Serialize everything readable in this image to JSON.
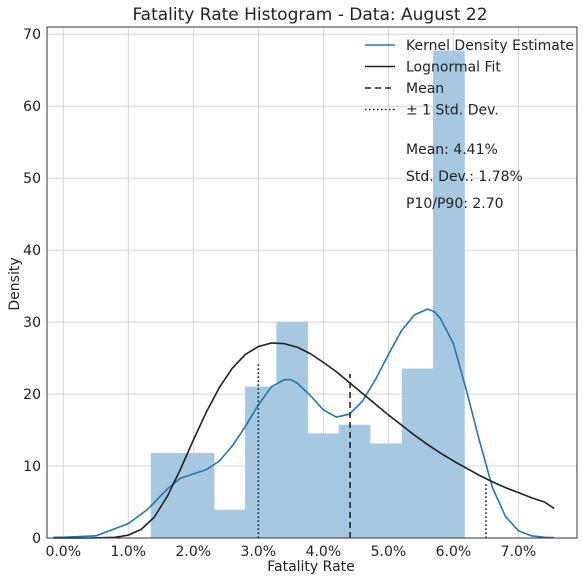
{
  "chart_data": {
    "type": "bar",
    "title": "Fatality Rate Histogram - Data: August 22",
    "xlabel": "Fatality Rate",
    "ylabel": "Density",
    "xlim": [
      -0.0025,
      0.079
    ],
    "ylim": [
      0,
      71
    ],
    "x_ticks": [
      0.0,
      0.01,
      0.02,
      0.03,
      0.04,
      0.05,
      0.06,
      0.07
    ],
    "x_tick_labels": [
      "0.0%",
      "1.0%",
      "2.0%",
      "3.0%",
      "4.0%",
      "5.0%",
      "6.0%",
      "7.0%"
    ],
    "y_ticks": [
      0,
      10,
      20,
      30,
      40,
      50,
      60,
      70
    ],
    "y_tick_labels": [
      "0",
      "10",
      "20",
      "30",
      "40",
      "50",
      "60",
      "70"
    ],
    "grid": true,
    "legend_position": "top-right",
    "histogram": {
      "color": "#a6c8e0",
      "bins": [
        {
          "x0": 0.0135,
          "x1": 0.0232,
          "density": 11.8
        },
        {
          "x0": 0.0232,
          "x1": 0.028,
          "density": 3.9
        },
        {
          "x0": 0.028,
          "x1": 0.0328,
          "density": 21.0
        },
        {
          "x0": 0.0328,
          "x1": 0.0376,
          "density": 30.0
        },
        {
          "x0": 0.0376,
          "x1": 0.0424,
          "density": 14.5
        },
        {
          "x0": 0.0424,
          "x1": 0.0472,
          "density": 15.7
        },
        {
          "x0": 0.0472,
          "x1": 0.0521,
          "density": 13.1
        },
        {
          "x0": 0.0521,
          "x1": 0.0569,
          "density": 23.5
        },
        {
          "x0": 0.0569,
          "x1": 0.0617,
          "density": 67.7
        }
      ]
    },
    "series": [
      {
        "name": "Kernel Density Estimate",
        "type": "line",
        "color": "#1f77b4",
        "style": "solid",
        "x": [
          -0.0015,
          0.0,
          0.005,
          0.01,
          0.013,
          0.016,
          0.018,
          0.02,
          0.022,
          0.024,
          0.026,
          0.028,
          0.03,
          0.032,
          0.034,
          0.035,
          0.036,
          0.038,
          0.04,
          0.042,
          0.044,
          0.046,
          0.048,
          0.05,
          0.052,
          0.054,
          0.056,
          0.057,
          0.058,
          0.06,
          0.062,
          0.064,
          0.066,
          0.068,
          0.07,
          0.072,
          0.074,
          0.0755
        ],
        "y": [
          0.1,
          0.1,
          0.3,
          2.0,
          4.0,
          6.8,
          8.3,
          8.9,
          9.5,
          10.7,
          12.8,
          15.5,
          18.5,
          21.0,
          22.0,
          22.0,
          21.5,
          19.8,
          17.8,
          16.8,
          17.2,
          19.0,
          22.0,
          25.5,
          28.8,
          31.0,
          31.8,
          31.5,
          30.5,
          27.0,
          20.5,
          13.5,
          7.0,
          3.0,
          1.0,
          0.3,
          0.1,
          0.05
        ]
      },
      {
        "name": "Lognormal Fit",
        "type": "line",
        "color": "#222222",
        "style": "solid",
        "x": [
          -0.0015,
          0.0,
          0.004,
          0.008,
          0.01,
          0.012,
          0.014,
          0.016,
          0.018,
          0.02,
          0.022,
          0.024,
          0.026,
          0.028,
          0.03,
          0.032,
          0.034,
          0.036,
          0.038,
          0.04,
          0.042,
          0.044,
          0.046,
          0.048,
          0.05,
          0.052,
          0.054,
          0.056,
          0.058,
          0.06,
          0.062,
          0.064,
          0.066,
          0.068,
          0.07,
          0.072,
          0.074,
          0.0755
        ],
        "y": [
          0.0,
          0.0,
          0.0,
          0.1,
          0.4,
          1.2,
          2.9,
          5.8,
          9.5,
          13.6,
          17.5,
          20.9,
          23.6,
          25.5,
          26.6,
          27.1,
          27.0,
          26.5,
          25.6,
          24.4,
          23.1,
          21.6,
          20.1,
          18.6,
          17.1,
          15.7,
          14.3,
          13.0,
          11.8,
          10.7,
          9.7,
          8.7,
          7.8,
          7.0,
          6.3,
          5.6,
          5.0,
          4.1
        ]
      }
    ],
    "vlines": [
      {
        "name": "Mean",
        "x": 0.0441,
        "y_top": 22.8,
        "style": "dashed",
        "color": "#222222"
      },
      {
        "name": "± 1 Std. Dev.",
        "x": 0.03,
        "y_top": 24.3,
        "style": "dotted",
        "color": "#222222"
      },
      {
        "name": "± 1 Std. Dev.",
        "x": 0.065,
        "y_top": 7.7,
        "style": "dotted",
        "color": "#222222",
        "hidden_from_legend": true
      }
    ],
    "legend": [
      {
        "label": "Kernel Density Estimate",
        "style": "solid",
        "color": "#1f77b4"
      },
      {
        "label": "Lognormal Fit",
        "style": "solid",
        "color": "#222222"
      },
      {
        "label": "Mean",
        "style": "dashed",
        "color": "#222222"
      },
      {
        "label": "± 1 Std. Dev.",
        "style": "dotted",
        "color": "#222222"
      }
    ],
    "annotations": [
      "Mean: 4.41%",
      "Std. Dev.: 1.78%",
      "P10/P90: 2.70"
    ]
  }
}
